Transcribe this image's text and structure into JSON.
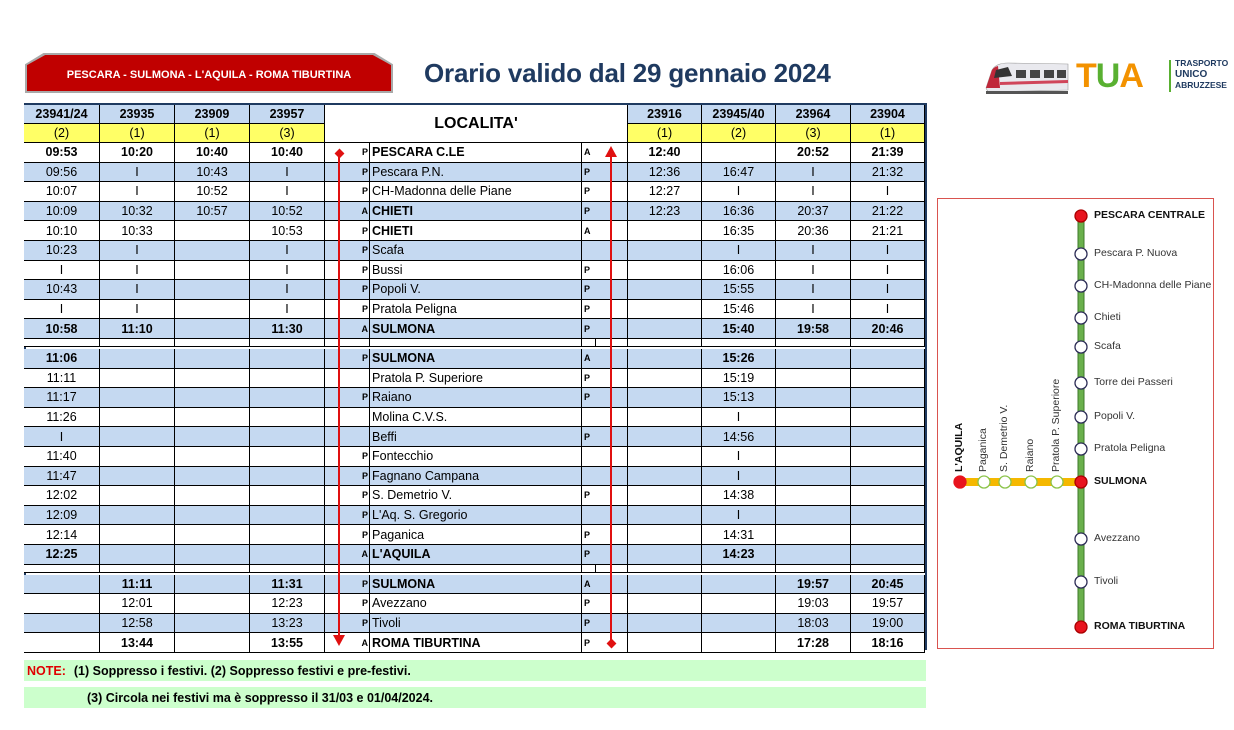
{
  "header": {
    "route": "PESCARA - SULMONA - L'AQUILA - ROMA TIBURTINA",
    "title": "Orario valido dal 29 gennaio 2024",
    "logo": {
      "brand": [
        "T",
        "U",
        "A"
      ],
      "subtitle": [
        "TRASPORTO",
        "UNICO",
        "ABRUZZESE"
      ]
    }
  },
  "table": {
    "localita_header": "LOCALITA'",
    "outbound_trains": [
      {
        "number": "23941/24",
        "note": "(2)"
      },
      {
        "number": "23935",
        "note": "(1)"
      },
      {
        "number": "23909",
        "note": "(1)"
      },
      {
        "number": "23957",
        "note": "(3)"
      }
    ],
    "return_trains": [
      {
        "number": "23916",
        "note": "(1)"
      },
      {
        "number": "23945/40",
        "note": "(2)"
      },
      {
        "number": "23964",
        "note": "(3)"
      },
      {
        "number": "23904",
        "note": "(1)"
      }
    ],
    "rows": [
      {
        "out": [
          "09:53",
          "10:20",
          "10:40",
          "10:40"
        ],
        "pl": "P",
        "station": "PESCARA C.LE",
        "pr": "A",
        "ret": [
          "12:40",
          "",
          "20:52",
          "21:39"
        ],
        "bold": true,
        "bg": "white"
      },
      {
        "out": [
          "09:56",
          "I",
          "10:43",
          "I"
        ],
        "pl": "P",
        "station": "Pescara P.N.",
        "pr": "P",
        "ret": [
          "12:36",
          "16:47",
          "I",
          "21:32"
        ],
        "bold": false,
        "bg": "blue"
      },
      {
        "out": [
          "10:07",
          "I",
          "10:52",
          "I"
        ],
        "pl": "P",
        "station": "CH-Madonna delle Piane",
        "pr": "P",
        "ret": [
          "12:27",
          "I",
          "I",
          "I"
        ],
        "bold": false,
        "bg": "white"
      },
      {
        "out": [
          "10:09",
          "10:32",
          "10:57",
          "10:52"
        ],
        "pl": "A",
        "station": "CHIETI",
        "pr": "P",
        "ret": [
          "12:23",
          "16:36",
          "20:37",
          "21:22"
        ],
        "bold": false,
        "stationBold": true,
        "bg": "blue"
      },
      {
        "out": [
          "10:10",
          "10:33",
          "",
          "10:53"
        ],
        "pl": "P",
        "station": "CHIETI",
        "pr": "A",
        "ret": [
          "",
          "16:35",
          "20:36",
          "21:21"
        ],
        "bold": false,
        "stationBold": true,
        "bg": "white"
      },
      {
        "out": [
          "10:23",
          "I",
          "",
          "I"
        ],
        "pl": "P",
        "station": "Scafa",
        "pr": "",
        "ret": [
          "",
          "I",
          "I",
          "I"
        ],
        "bold": false,
        "bg": "blue"
      },
      {
        "out": [
          "I",
          "I",
          "",
          "I"
        ],
        "pl": "P",
        "station": "Bussi",
        "pr": "P",
        "ret": [
          "",
          "16:06",
          "I",
          "I"
        ],
        "bold": false,
        "bg": "white"
      },
      {
        "out": [
          "10:43",
          "I",
          "",
          "I"
        ],
        "pl": "P",
        "station": "Popoli V.",
        "pr": "P",
        "ret": [
          "",
          "15:55",
          "I",
          "I"
        ],
        "bold": false,
        "bg": "blue"
      },
      {
        "out": [
          "I",
          "I",
          "",
          "I"
        ],
        "pl": "P",
        "station": "Pratola Peligna",
        "pr": "P",
        "ret": [
          "",
          "15:46",
          "I",
          "I"
        ],
        "bold": false,
        "bg": "white"
      },
      {
        "out": [
          "10:58",
          "11:10",
          "",
          "11:30"
        ],
        "pl": "A",
        "station": "SULMONA",
        "pr": "P",
        "ret": [
          "",
          "15:40",
          "19:58",
          "20:46"
        ],
        "bold": true,
        "bg": "blue"
      },
      {
        "separator": true
      },
      {
        "out": [
          "11:06",
          "",
          "",
          ""
        ],
        "pl": "P",
        "station": "SULMONA",
        "pr": "A",
        "ret": [
          "",
          "15:26",
          "",
          ""
        ],
        "bold": true,
        "bg": "blue"
      },
      {
        "out": [
          "11:11",
          "",
          "",
          ""
        ],
        "pl": "",
        "station": "Pratola P. Superiore",
        "pr": "P",
        "ret": [
          "",
          "15:19",
          "",
          ""
        ],
        "bold": false,
        "bg": "white"
      },
      {
        "out": [
          "11:17",
          "",
          "",
          ""
        ],
        "pl": "P",
        "station": "Raiano",
        "pr": "P",
        "ret": [
          "",
          "15:13",
          "",
          ""
        ],
        "bold": false,
        "bg": "blue"
      },
      {
        "out": [
          "11:26",
          "",
          "",
          ""
        ],
        "pl": "",
        "station": "Molina C.V.S.",
        "pr": "",
        "ret": [
          "",
          "I",
          "",
          ""
        ],
        "bold": false,
        "bg": "white"
      },
      {
        "out": [
          "I",
          "",
          "",
          ""
        ],
        "pl": "",
        "station": "Beffi",
        "pr": "P",
        "ret": [
          "",
          "14:56",
          "",
          ""
        ],
        "bold": false,
        "bg": "blue"
      },
      {
        "out": [
          "11:40",
          "",
          "",
          ""
        ],
        "pl": "P",
        "station": "Fontecchio",
        "pr": "",
        "ret": [
          "",
          "I",
          "",
          ""
        ],
        "bold": false,
        "bg": "white"
      },
      {
        "out": [
          "11:47",
          "",
          "",
          ""
        ],
        "pl": "P",
        "station": "Fagnano Campana",
        "pr": "",
        "ret": [
          "",
          "I",
          "",
          ""
        ],
        "bold": false,
        "bg": "blue"
      },
      {
        "out": [
          "12:02",
          "",
          "",
          ""
        ],
        "pl": "P",
        "station": "S. Demetrio V.",
        "pr": "P",
        "ret": [
          "",
          "14:38",
          "",
          ""
        ],
        "bold": false,
        "bg": "white"
      },
      {
        "out": [
          "12:09",
          "",
          "",
          ""
        ],
        "pl": "P",
        "station": "L'Aq. S. Gregorio",
        "pr": "",
        "ret": [
          "",
          "I",
          "",
          ""
        ],
        "bold": false,
        "bg": "blue"
      },
      {
        "out": [
          "12:14",
          "",
          "",
          ""
        ],
        "pl": "P",
        "station": "Paganica",
        "pr": "P",
        "ret": [
          "",
          "14:31",
          "",
          ""
        ],
        "bold": false,
        "bg": "white"
      },
      {
        "out": [
          "12:25",
          "",
          "",
          ""
        ],
        "pl": "A",
        "station": "L'AQUILA",
        "pr": "P",
        "ret": [
          "",
          "14:23",
          "",
          ""
        ],
        "bold": true,
        "bg": "blue"
      },
      {
        "separator": true
      },
      {
        "out": [
          "",
          "11:11",
          "",
          "11:31"
        ],
        "pl": "P",
        "station": "SULMONA",
        "pr": "A",
        "ret": [
          "",
          "",
          "19:57",
          "20:45"
        ],
        "bold": true,
        "bg": "blue"
      },
      {
        "out": [
          "",
          "12:01",
          "",
          "12:23"
        ],
        "pl": "P",
        "station": "Avezzano",
        "pr": "P",
        "ret": [
          "",
          "",
          "19:03",
          "19:57"
        ],
        "bold": false,
        "bg": "white"
      },
      {
        "out": [
          "",
          "12:58",
          "",
          "13:23"
        ],
        "pl": "P",
        "station": "Tivoli",
        "pr": "P",
        "ret": [
          "",
          "",
          "18:03",
          "19:00"
        ],
        "bold": false,
        "bg": "blue"
      },
      {
        "out": [
          "",
          "13:44",
          "",
          "13:55"
        ],
        "pl": "A",
        "station": "ROMA TIBURTINA",
        "pr": "P",
        "ret": [
          "",
          "",
          "17:28",
          "18:16"
        ],
        "bold": true,
        "bg": "white"
      }
    ]
  },
  "notes": {
    "label": "NOTE:",
    "line1": "(1) Soppresso i festivi. (2) Soppresso festivi e pre-festivi.",
    "line2": "(3) Circola nei festivi ma è soppresso il  31/03 e 01/04/2024."
  },
  "map": {
    "main_line": [
      {
        "name": "PESCARA CENTRALE",
        "terminal": true
      },
      {
        "name": "Pescara P. Nuova",
        "terminal": false
      },
      {
        "name": "CH-Madonna delle Piane",
        "terminal": false
      },
      {
        "name": "Chieti",
        "terminal": false
      },
      {
        "name": "Scafa",
        "terminal": false
      },
      {
        "name": "Torre dei Passeri",
        "terminal": false
      },
      {
        "name": "Popoli V.",
        "terminal": false
      },
      {
        "name": "Pratola Peligna",
        "terminal": false
      },
      {
        "name": "SULMONA",
        "terminal": true
      },
      {
        "name": "Avezzano",
        "terminal": false
      },
      {
        "name": "Tivoli",
        "terminal": false
      },
      {
        "name": "ROMA TIBURTINA",
        "terminal": true
      }
    ],
    "branch_line": [
      {
        "name": "L'AQUILA",
        "terminal": true
      },
      {
        "name": "Paganica",
        "terminal": false
      },
      {
        "name": "S. Demetrio V.",
        "terminal": false
      },
      {
        "name": "Raiano",
        "terminal": false
      },
      {
        "name": "Pratola P. Superiore",
        "terminal": false
      }
    ],
    "colors": {
      "main": "#6ab04c",
      "branch": "#f5b800",
      "terminal": "#e8141e"
    }
  }
}
